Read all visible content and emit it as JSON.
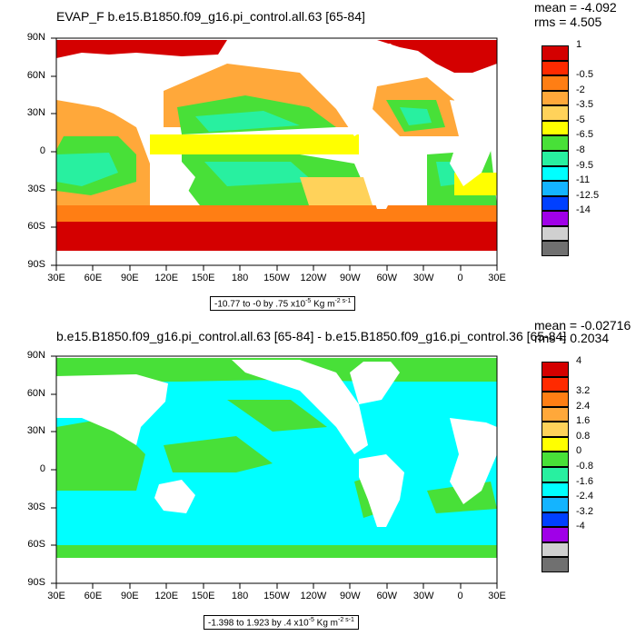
{
  "panel1": {
    "title": "EVAP_F b.e15.B1850.f09_g16.pi_control.all.63 [65-84]",
    "mean": "mean = -4.092",
    "rms": "rms = 4.505",
    "info_prefix": "-10.77 to -0 by .75 x10",
    "info_unit": "Kg m",
    "colorbar_labels": [
      "1",
      "-0.5",
      "-2",
      "-3.5",
      "-5",
      "-6.5",
      "-8",
      "-9.5",
      "-11",
      "-12.5",
      "-14"
    ],
    "colorbar_colors": [
      "#d40000",
      "#ff2a00",
      "#ff7e14",
      "#ffa83a",
      "#ffd25a",
      "#ffff00",
      "#48e038",
      "#28f0a0",
      "#00ffff",
      "#14b4ff",
      "#0040ff",
      "#a000e8",
      "#d0d0d0",
      "#707070"
    ]
  },
  "panel2": {
    "title": "b.e15.B1850.f09_g16.pi_control.all.63 [65-84] - b.e15.B1850.f09_g16.pi_control.36 [65-84]",
    "mean": "mean = -0.02716",
    "rms": "rms = 0.2034",
    "info_prefix": "-1.398 to 1.923 by .4 x10",
    "info_unit": "Kg m",
    "colorbar_labels": [
      "4",
      "3.2",
      "2.4",
      "1.6",
      "0.8",
      "0",
      "-0.8",
      "-1.6",
      "-2.4",
      "-3.2",
      "-4"
    ],
    "colorbar_colors": [
      "#d40000",
      "#ff2a00",
      "#ff7e14",
      "#ffa83a",
      "#ffd25a",
      "#ffff00",
      "#48e038",
      "#28f0a0",
      "#00ffff",
      "#14b4ff",
      "#0040ff",
      "#a000e8",
      "#d0d0d0",
      "#707070"
    ]
  },
  "axes": {
    "lon_labels": [
      "30E",
      "60E",
      "90E",
      "120E",
      "150E",
      "180",
      "150W",
      "120W",
      "90W",
      "60W",
      "30W",
      "0",
      "30E"
    ],
    "lat_labels": [
      "90N",
      "60N",
      "30N",
      "0",
      "30S",
      "60S",
      "90S"
    ]
  },
  "info_exponent": "-5",
  "info_unit_exponent": "-2 s-1"
}
